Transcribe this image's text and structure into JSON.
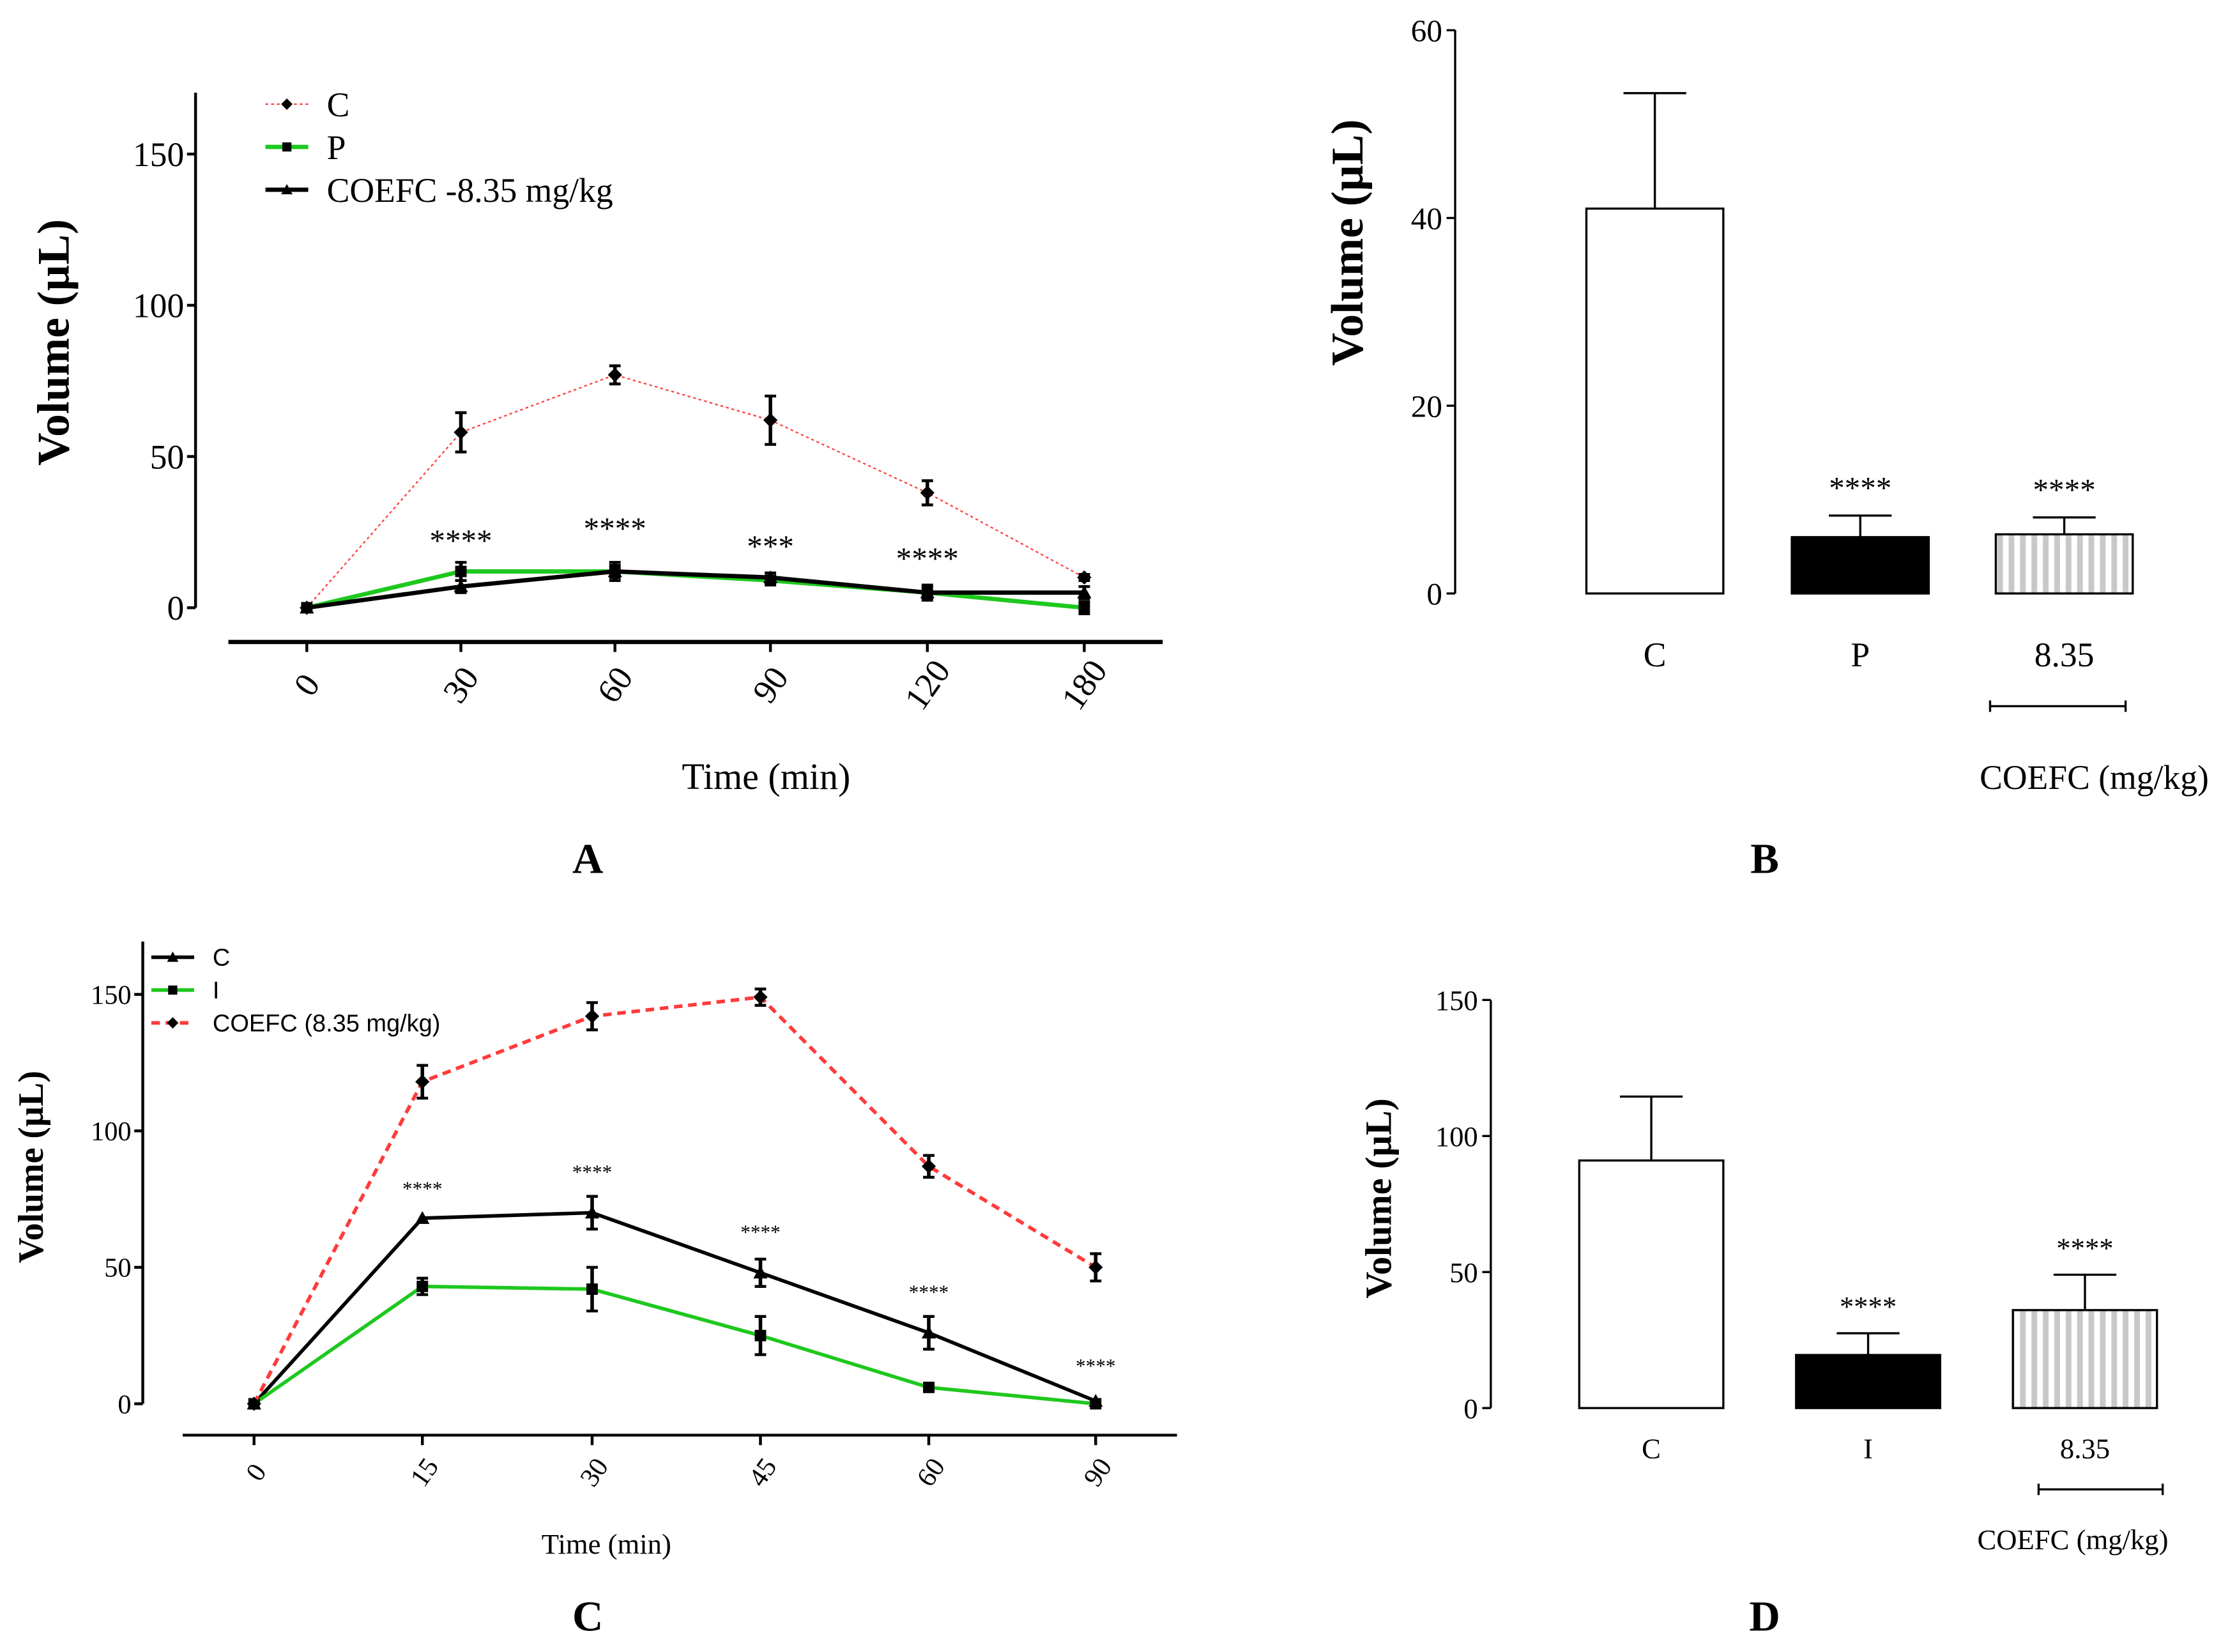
{
  "chart_data": [
    {
      "panel": "A",
      "type": "line",
      "xlabel": "Time (min)",
      "ylabel": "Volume (µL)",
      "categories": [
        "0",
        "30",
        "60",
        "90",
        "120",
        "180"
      ],
      "yticks": [
        "0",
        "50",
        "100",
        "150"
      ],
      "ylim": [
        0,
        170
      ],
      "series": [
        {
          "name": "C",
          "color": "#ff3b3b",
          "style": "dotted",
          "marker": "diamond",
          "values": [
            0,
            58,
            77,
            62,
            38,
            10
          ],
          "errors": [
            0,
            6.5,
            3,
            8,
            4,
            1
          ]
        },
        {
          "name": "P",
          "color": "#1ec81e",
          "style": "solid",
          "marker": "square",
          "values": [
            0,
            12,
            12,
            9,
            5,
            0
          ],
          "errors": [
            0,
            3,
            3,
            1.5,
            2.5,
            2
          ]
        },
        {
          "name": "COEFC -8.35 mg/kg",
          "color": "#000000",
          "style": "solid",
          "marker": "triangle",
          "values": [
            0,
            7,
            12,
            10,
            5,
            5
          ],
          "errors": [
            0,
            2,
            2,
            1.5,
            2,
            2
          ]
        }
      ],
      "annotations": [
        {
          "x": "30",
          "y": 24,
          "text": "****"
        },
        {
          "x": "60",
          "y": 28,
          "text": "****"
        },
        {
          "x": "90",
          "y": 22,
          "text": "***"
        },
        {
          "x": "120",
          "y": 18,
          "text": "****"
        }
      ],
      "legend": "top-left"
    },
    {
      "panel": "B",
      "type": "bar",
      "ylabel": "Volume (µL)",
      "categories": [
        "C",
        "P",
        "8.35"
      ],
      "group_label": "COEFC (mg/kg)",
      "yticks": [
        "0",
        "20",
        "40",
        "60"
      ],
      "ylim": [
        0,
        60
      ],
      "values": [
        41,
        6,
        6.3
      ],
      "errors": [
        12.3,
        2.3,
        1.8
      ],
      "fills": [
        "white",
        "black",
        "striped"
      ],
      "annotations": [
        "",
        "****",
        "****"
      ]
    },
    {
      "panel": "C",
      "type": "line",
      "xlabel": "Time (min)",
      "ylabel": "Volume (µL)",
      "categories": [
        "0",
        "15",
        "30",
        "45",
        "60",
        "90"
      ],
      "yticks": [
        "0",
        "50",
        "100",
        "150"
      ],
      "ylim": [
        0,
        170
      ],
      "series": [
        {
          "name": "C",
          "color": "#000000",
          "style": "solid",
          "marker": "triangle",
          "values": [
            0,
            68,
            70,
            48,
            26,
            1
          ],
          "errors": [
            0,
            0,
            6,
            5,
            6,
            0
          ]
        },
        {
          "name": "I",
          "color": "#1ec81e",
          "style": "solid",
          "marker": "square",
          "values": [
            0,
            43,
            42,
            25,
            6,
            0
          ],
          "errors": [
            0,
            3,
            8,
            7,
            1,
            0
          ]
        },
        {
          "name": "COEFC (8.35 mg/kg)",
          "color": "#ff3b3b",
          "style": "dashed",
          "marker": "diamond",
          "values": [
            0,
            118,
            142,
            149,
            87,
            50
          ],
          "errors": [
            0,
            6,
            5,
            3,
            4,
            5
          ]
        }
      ],
      "annotations": [
        {
          "x": "15",
          "y": 80,
          "text": "****"
        },
        {
          "x": "30",
          "y": 86,
          "text": "****"
        },
        {
          "x": "45",
          "y": 64,
          "text": "****"
        },
        {
          "x": "60",
          "y": 42,
          "text": "****"
        },
        {
          "x": "90",
          "y": 15,
          "text": "****"
        }
      ],
      "legend": "top-left"
    },
    {
      "panel": "D",
      "type": "bar",
      "ylabel": "Volume (µL)",
      "categories": [
        "C",
        "I",
        "8.35"
      ],
      "group_label": "COEFC (mg/kg)",
      "yticks": [
        "0",
        "50",
        "100",
        "150"
      ],
      "ylim": [
        0,
        150
      ],
      "values": [
        91,
        19.5,
        36
      ],
      "errors": [
        23.5,
        8,
        13
      ],
      "fills": [
        "white",
        "black",
        "striped"
      ],
      "annotations": [
        "",
        "****",
        "****"
      ]
    }
  ]
}
